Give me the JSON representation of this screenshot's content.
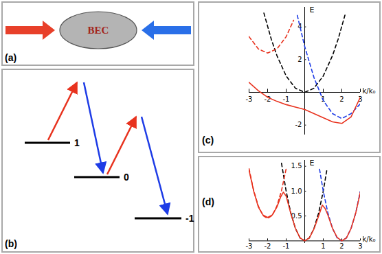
{
  "panels": {
    "a": {
      "label": "(a)",
      "text": "BEC"
    },
    "b": {
      "label": "(b)",
      "levels": [
        "1",
        "0",
        "-1"
      ]
    }
  },
  "chart_data": [
    {
      "type": "line",
      "title": "(c)",
      "xlabel": "k/k₀",
      "ylabel": "E",
      "xlim": [
        -3,
        3
      ],
      "ylim": [
        -2.6,
        5.2
      ],
      "xticks": [
        -3,
        -2,
        -1,
        1,
        2,
        3
      ],
      "yticks": [
        -2,
        2,
        4
      ],
      "series": [
        {
          "color": "#000000",
          "line_style": "dashed",
          "x": [
            -2.2,
            -1.8,
            -1.5,
            -1,
            -0.5,
            0,
            0.5,
            1,
            1.5,
            1.8,
            2.2
          ],
          "values": [
            4.84,
            3.24,
            2.25,
            1,
            0.25,
            0,
            0.25,
            1,
            2.25,
            3.24,
            4.84
          ]
        },
        {
          "color": "#e8321e",
          "line_style": "dashed",
          "x": [
            -3,
            -2.5,
            -2,
            -1.5,
            -1,
            -0.6
          ],
          "values": [
            3.4,
            2.65,
            2.4,
            2.65,
            3.4,
            4.4
          ]
        },
        {
          "color": "#1e3ce6",
          "line_style": "dashed",
          "x": [
            -0.4,
            0,
            0.5,
            1,
            1.5,
            2,
            2.5,
            3
          ],
          "values": [
            4.7,
            2.8,
            0.9,
            -0.5,
            -1.3,
            -1.6,
            -1.3,
            -0.7
          ]
        },
        {
          "color": "#e8321e",
          "line_style": "solid",
          "x": [
            -3,
            -2.5,
            -2,
            -1.5,
            -1,
            -0.5,
            0,
            0.5,
            1,
            1.5,
            2,
            2.5,
            3
          ],
          "values": [
            0.6,
            0.1,
            -0.3,
            -0.55,
            -0.75,
            -0.9,
            -1.05,
            -1.3,
            -1.55,
            -1.8,
            -1.9,
            -1.5,
            -0.3
          ]
        }
      ]
    },
    {
      "type": "line",
      "title": "(d)",
      "xlabel": "k/k₀",
      "ylabel": "E",
      "xlim": [
        -3,
        3
      ],
      "ylim": [
        -0.05,
        1.62
      ],
      "xticks": [
        -3,
        -2,
        -1,
        1,
        2,
        3
      ],
      "yticks": [
        {
          "value": 0.5,
          "label": "0.5"
        },
        {
          "value": 1,
          "label": "1.0"
        },
        {
          "value": 1.5,
          "label": "1.5"
        }
      ],
      "series": [
        {
          "color": "#000000",
          "line_style": "dashed",
          "x": [
            -1.25,
            -1,
            -0.75,
            -0.5,
            -0.25,
            0,
            0.25,
            0.5,
            0.75,
            1,
            1.2
          ],
          "values": [
            1.56,
            1,
            0.56,
            0.25,
            0.06,
            0,
            0.06,
            0.25,
            0.56,
            1,
            1.44
          ]
        },
        {
          "color": "#e8321e",
          "line_style": "dashed",
          "x": [
            -3,
            -2.75,
            -2.5,
            -2.25,
            -2,
            -1.75,
            -1.5,
            -1.25,
            -1
          ],
          "values": [
            1.45,
            1.01,
            0.7,
            0.51,
            0.45,
            0.51,
            0.7,
            1.01,
            1.45
          ]
        },
        {
          "color": "#1e3ce6",
          "line_style": "dashed",
          "x": [
            0.8,
            1,
            1.25,
            1.5,
            1.75,
            2,
            2.25,
            2.5,
            2.75,
            3
          ],
          "values": [
            1.44,
            1,
            0.56,
            0.25,
            0.06,
            0,
            0.06,
            0.25,
            0.56,
            1
          ]
        },
        {
          "color": "#e8321e",
          "line_style": "solid",
          "x": [
            -3,
            -2.75,
            -2.5,
            -2.25,
            -2,
            -1.75,
            -1.5,
            -1.3,
            -1.15,
            -1,
            -0.75,
            -0.5,
            -0.25,
            0,
            0.25,
            0.5,
            0.75,
            0.95,
            1.1,
            1.25,
            1.5,
            1.75,
            2,
            2.25,
            2.5,
            2.75,
            3
          ],
          "values": [
            1.42,
            1,
            0.68,
            0.52,
            0.47,
            0.52,
            0.68,
            0.88,
            0.98,
            0.9,
            0.55,
            0.25,
            0.06,
            0,
            0.06,
            0.24,
            0.5,
            0.72,
            0.65,
            0.52,
            0.25,
            0.07,
            0,
            0.06,
            0.25,
            0.56,
            0.98
          ]
        }
      ]
    }
  ]
}
